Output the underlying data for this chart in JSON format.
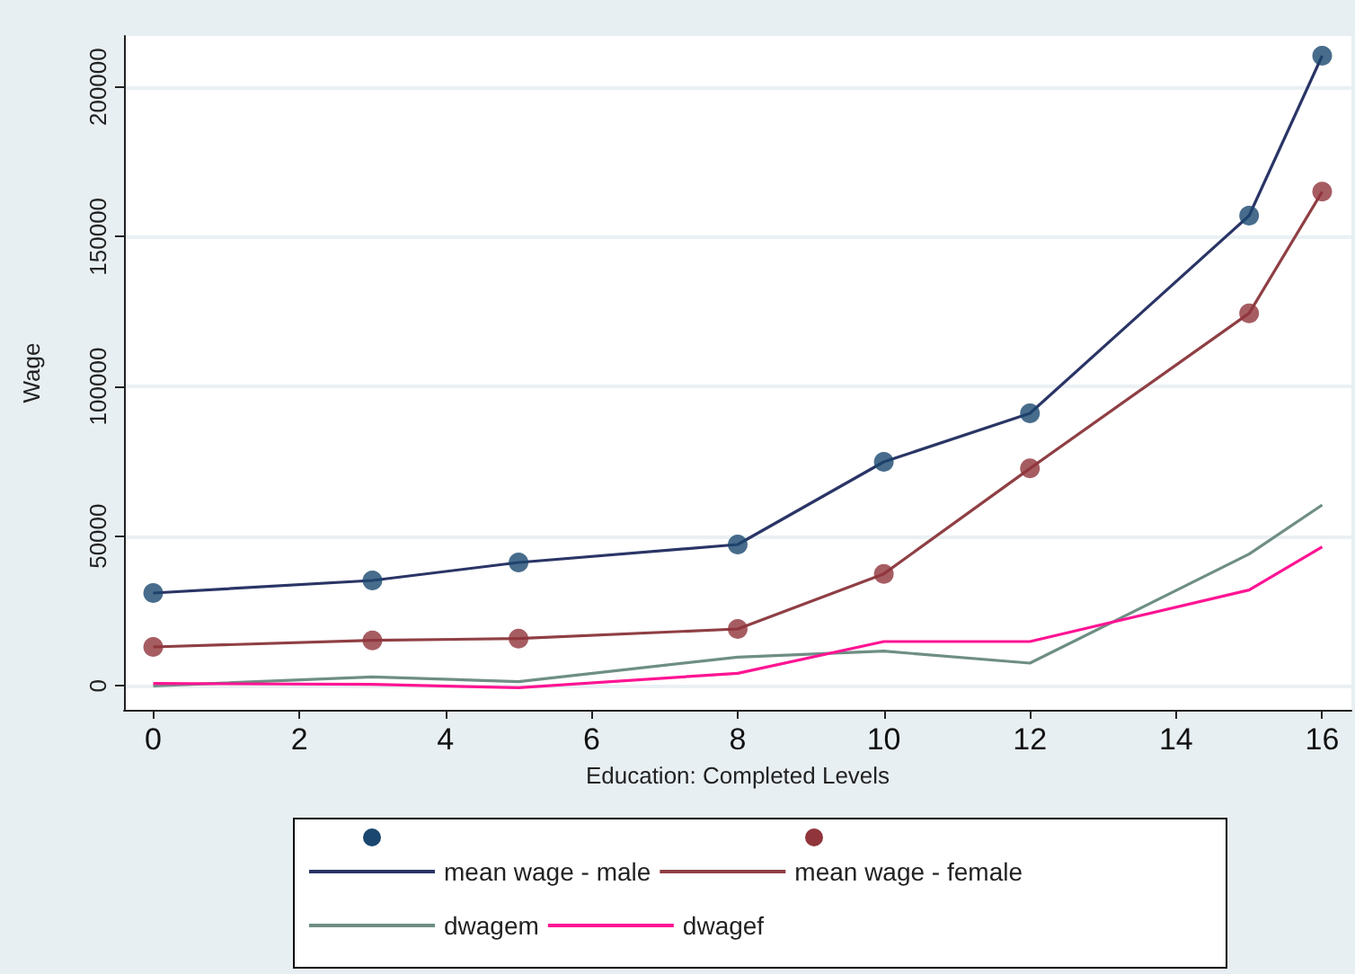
{
  "chart_data": {
    "type": "line",
    "xlabel": "Education: Completed Levels",
    "ylabel": "Wage",
    "x": [
      0,
      3,
      5,
      8,
      10,
      12,
      15,
      16
    ],
    "series": [
      {
        "type": "scatter",
        "marker": "circle",
        "color": "#1a476f",
        "values": [
          31000,
          35200,
          41200,
          47200,
          74800,
          91000,
          157000,
          210400
        ]
      },
      {
        "type": "scatter",
        "marker": "circle",
        "color": "#90353b",
        "values": [
          13000,
          15200,
          15800,
          19000,
          37400,
          72600,
          124400,
          165000
        ]
      },
      {
        "name": "mean wage - male",
        "color": "#2a3566",
        "values": [
          31000,
          35200,
          41200,
          47200,
          74800,
          91000,
          157000,
          210400
        ]
      },
      {
        "name": "mean wage - female",
        "color": "#8f3f44",
        "values": [
          13000,
          15200,
          15800,
          19000,
          37400,
          72600,
          124400,
          165000
        ]
      },
      {
        "name": "dwagem",
        "color": "#6e8e84",
        "values": [
          0,
          3000,
          1400,
          9600,
          11600,
          7600,
          44000,
          60400
        ]
      },
      {
        "name": "dwagef",
        "color": "#ff1493",
        "values": [
          800,
          500,
          -600,
          4200,
          14800,
          14800,
          32000,
          46400
        ]
      }
    ],
    "xlim": [
      -0.4,
      16.4
    ],
    "xticks": [
      0,
      2,
      4,
      6,
      8,
      10,
      12,
      14,
      16
    ],
    "ylim": [
      -8000,
      217000
    ],
    "yticks": [
      0,
      50000,
      100000,
      150000,
      200000
    ],
    "grid": "y",
    "legend": "bottom"
  }
}
